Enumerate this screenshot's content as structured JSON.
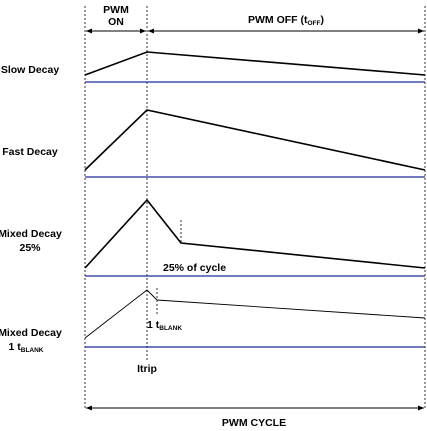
{
  "header": {
    "pwm_on_line1": "PWM",
    "pwm_on_line2": "ON",
    "pwm_off_main": "PWM OFF (t",
    "pwm_off_sub": "OFF",
    "pwm_off_close": ")"
  },
  "rows": {
    "slow": {
      "label": "Slow Decay"
    },
    "fast": {
      "label": "Fast Decay"
    },
    "mixed25": {
      "label_line1": "Mixed Decay",
      "label_line2": "25%",
      "annotation": "25% of cycle"
    },
    "mixedblank": {
      "label_line1": "Mixed Decay",
      "label_line2_main": "1 t",
      "label_line2_sub": "BLANK",
      "annotation_main": "1 t",
      "annotation_sub": "BLANK"
    }
  },
  "footer": {
    "itrip": "Itrip",
    "pwm_cycle": "PWM CYCLE"
  },
  "colors": {
    "baseline": "#1f2a9a",
    "waveform": "#000000"
  }
}
